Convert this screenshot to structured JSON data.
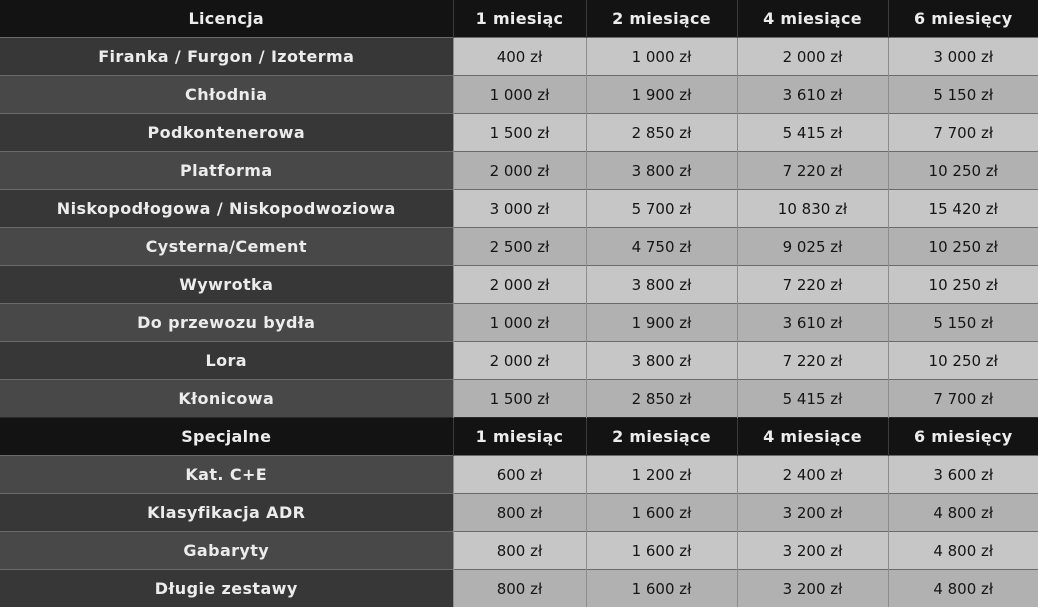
{
  "licenses_header": [
    "Licencja",
    "1 miesiąc",
    "2 miesiące",
    "4 miesiące",
    "6 miesięcy"
  ],
  "licenses": [
    {
      "name": "Firanka / Furgon / Izoterma",
      "prices": [
        "400 zł",
        "1 000 zł",
        "2 000 zł",
        "3 000 zł"
      ]
    },
    {
      "name": "Chłodnia",
      "prices": [
        "1 000 zł",
        "1 900 zł",
        "3 610 zł",
        "5 150 zł"
      ]
    },
    {
      "name": "Podkontenerowa",
      "prices": [
        "1 500 zł",
        "2 850 zł",
        "5 415 zł",
        "7 700 zł"
      ]
    },
    {
      "name": "Platforma",
      "prices": [
        "2 000 zł",
        "3 800 zł",
        "7 220 zł",
        "10 250 zł"
      ]
    },
    {
      "name": "Niskopodłogowa / Niskopodwoziowa",
      "prices": [
        "3 000 zł",
        "5 700 zł",
        "10 830 zł",
        "15 420 zł"
      ]
    },
    {
      "name": "Cysterna/Cement",
      "prices": [
        "2 500 zł",
        "4 750 zł",
        "9 025 zł",
        "10 250 zł"
      ]
    },
    {
      "name": "Wywrotka",
      "prices": [
        "2 000 zł",
        "3 800 zł",
        "7 220 zł",
        "10 250 zł"
      ]
    },
    {
      "name": "Do przewozu bydła",
      "prices": [
        "1 000 zł",
        "1 900 zł",
        "3 610 zł",
        "5 150 zł"
      ]
    },
    {
      "name": "Lora",
      "prices": [
        "2 000 zł",
        "3 800 zł",
        "7 220 zł",
        "10 250 zł"
      ]
    },
    {
      "name": "Kłonicowa",
      "prices": [
        "1 500 zł",
        "2 850 zł",
        "5 415 zł",
        "7 700 zł"
      ]
    }
  ],
  "special_header": [
    "Specjalne",
    "1 miesiąc",
    "2 miesiące",
    "4 miesiące",
    "6 miesięcy"
  ],
  "special": [
    {
      "name": "Kat. C+E",
      "prices": [
        "600 zł",
        "1 200 zł",
        "2 400 zł",
        "3 600 zł"
      ]
    },
    {
      "name": "Klasyfikacja ADR",
      "prices": [
        "800 zł",
        "1 600 zł",
        "3 200 zł",
        "4 800 zł"
      ]
    },
    {
      "name": "Gabaryty",
      "prices": [
        "800 zł",
        "1 600 zł",
        "3 200 zł",
        "4 800 zł"
      ]
    },
    {
      "name": "Długie zestawy",
      "prices": [
        "800 zł",
        "1 600 zł",
        "3 200 zł",
        "4 800 zł"
      ]
    }
  ]
}
